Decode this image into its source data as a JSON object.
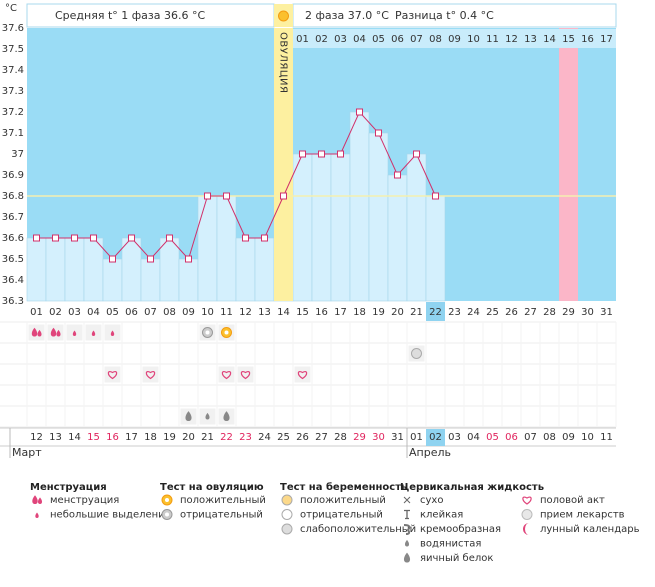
{
  "unit": "°C",
  "header": {
    "phase1": "Средняя t° 1 фаза 36.6 °C",
    "phase2": "2 фаза 37.0 °C",
    "diff": "Разница t° 0.4 °C"
  },
  "ovulation_label": "ОВУЛЯЦИЯ",
  "chart_data": {
    "type": "line",
    "categories": [
      "01",
      "02",
      "03",
      "04",
      "05",
      "06",
      "07",
      "08",
      "09",
      "10",
      "11",
      "12",
      "13",
      "14",
      "15",
      "16",
      "17",
      "18",
      "19",
      "20",
      "21",
      "22",
      "23",
      "24",
      "25",
      "26",
      "27",
      "28",
      "29",
      "30",
      "31"
    ],
    "values": [
      36.6,
      36.6,
      36.6,
      36.6,
      36.5,
      36.6,
      36.5,
      36.6,
      36.5,
      36.8,
      36.8,
      36.6,
      36.6,
      36.8,
      37.0,
      37.0,
      37.0,
      37.2,
      37.1,
      36.9,
      37.0,
      36.8,
      null,
      null,
      null,
      null,
      null,
      null,
      null,
      null,
      null
    ],
    "color": "#d1306a",
    "coverline": 36.8,
    "ovulation_day": "14",
    "pink_day": "29",
    "today": "22",
    "ylim": [
      36.3,
      37.6
    ],
    "yticks": [
      36.3,
      36.4,
      36.5,
      36.6,
      36.7,
      36.8,
      36.9,
      37,
      37.1,
      37.2,
      37.3,
      37.4,
      37.5,
      37.6
    ],
    "phase2_days": [
      "01",
      "02",
      "03",
      "04",
      "05",
      "06",
      "07",
      "08",
      "09",
      "10",
      "11",
      "12",
      "13",
      "14",
      "15",
      "16",
      "17"
    ]
  },
  "dates": [
    {
      "label": "12"
    },
    {
      "label": "13"
    },
    {
      "label": "14"
    },
    {
      "label": "15",
      "weekend": true
    },
    {
      "label": "16",
      "weekend": true
    },
    {
      "label": "17"
    },
    {
      "label": "18"
    },
    {
      "label": "19"
    },
    {
      "label": "20"
    },
    {
      "label": "21"
    },
    {
      "label": "22",
      "weekend": true
    },
    {
      "label": "23",
      "weekend": true
    },
    {
      "label": "24"
    },
    {
      "label": "25"
    },
    {
      "label": "26"
    },
    {
      "label": "27"
    },
    {
      "label": "28"
    },
    {
      "label": "29",
      "weekend": true
    },
    {
      "label": "30",
      "weekend": true
    },
    {
      "label": "31"
    },
    {
      "label": "01"
    },
    {
      "label": "02"
    },
    {
      "label": "03"
    },
    {
      "label": "04"
    },
    {
      "label": "05",
      "weekend": true
    },
    {
      "label": "06",
      "weekend": true
    },
    {
      "label": "07"
    },
    {
      "label": "08"
    },
    {
      "label": "09"
    },
    {
      "label": "10"
    },
    {
      "label": "11"
    }
  ],
  "months": [
    {
      "label": "Март",
      "day": "01"
    },
    {
      "label": "Апрель",
      "day": "21"
    }
  ],
  "symptom_rows": [
    [
      {
        "day": "01",
        "group": "Менструация",
        "item": "менструация"
      },
      {
        "day": "02",
        "group": "Менструация",
        "item": "менструация"
      },
      {
        "day": "03",
        "group": "Менструация",
        "item": "небольшие выделения"
      },
      {
        "day": "04",
        "group": "Менструация",
        "item": "небольшие выделения"
      },
      {
        "day": "05",
        "group": "Менструация",
        "item": "небольшие выделения"
      },
      {
        "day": "10",
        "group": "Тест на овуляцию",
        "item": "отрицательный"
      },
      {
        "day": "11",
        "group": "Тест на овуляцию",
        "item": "положительный"
      }
    ],
    [
      {
        "day": "21",
        "group": "Тест на беременность",
        "item": "слабоположительный"
      }
    ],
    [
      {
        "day": "05",
        "group": null,
        "item": "половой акт"
      },
      {
        "day": "07",
        "group": null,
        "item": "половой акт"
      },
      {
        "day": "11",
        "group": null,
        "item": "половой акт"
      },
      {
        "day": "12",
        "group": null,
        "item": "половой акт"
      },
      {
        "day": "15",
        "group": null,
        "item": "половой акт"
      }
    ],
    [],
    [
      {
        "day": "09",
        "group": "Цервикальная жидкость",
        "item": "яичный белок"
      },
      {
        "day": "10",
        "group": "Цервикальная жидкость",
        "item": "водянистая"
      },
      {
        "day": "11",
        "group": "Цервикальная жидкость",
        "item": "яичный белок"
      }
    ]
  ],
  "legend": [
    {
      "title": "Менструация",
      "items": [
        "менструация",
        "небольшие выделения"
      ]
    },
    {
      "title": "Тест на овуляцию",
      "items": [
        "положительный",
        "отрицательный"
      ]
    },
    {
      "title": "Тест на беременность",
      "items": [
        "положительный",
        "отрицательный",
        "слабоположительный"
      ]
    },
    {
      "title": "Цервикальная жидкость",
      "items": [
        "сухо",
        "клейкая",
        "кремообразная",
        "водянистая",
        "яичный белок"
      ]
    },
    {
      "title": null,
      "items": [
        "половой акт",
        "прием лекарств",
        "лунный календарь"
      ]
    }
  ]
}
